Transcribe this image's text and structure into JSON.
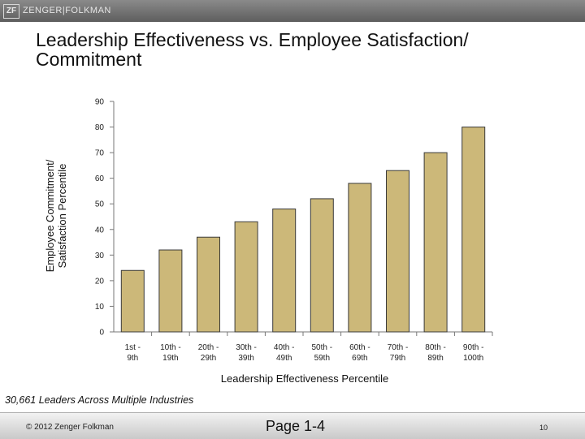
{
  "header": {
    "logo_mark": "ZF",
    "logo_text": "ZENGER|FOLKMAN"
  },
  "title": "Leadership Effectiveness vs. Employee Satisfaction/ Commitment",
  "chart_data": {
    "type": "bar",
    "categories": [
      [
        "1st -",
        "9th"
      ],
      [
        "10th -",
        "19th"
      ],
      [
        "20th -",
        "29th"
      ],
      [
        "30th -",
        "39th"
      ],
      [
        "40th -",
        "49th"
      ],
      [
        "50th -",
        "59th"
      ],
      [
        "60th -",
        "69th"
      ],
      [
        "70th -",
        "79th"
      ],
      [
        "80th -",
        "89th"
      ],
      [
        "90th -",
        "100th"
      ]
    ],
    "values": [
      24,
      32,
      37,
      43,
      48,
      52,
      58,
      63,
      70,
      80
    ],
    "ylabel": [
      "Employee Commitment/",
      "Satisfaction Percentile"
    ],
    "xlabel": "Leadership Effectiveness Percentile",
    "ylim": [
      0,
      90
    ],
    "yticks": [
      0,
      10,
      20,
      30,
      40,
      50,
      60,
      70,
      80,
      90
    ],
    "bar_color": "#ccb879",
    "bar_border": "#3a3a3a",
    "grid": false
  },
  "footnote": "30,661 Leaders Across Multiple Industries",
  "footer": {
    "copyright": "© 2012 Zenger Folkman",
    "page_label": "Page 1-4",
    "page_number": "10"
  }
}
